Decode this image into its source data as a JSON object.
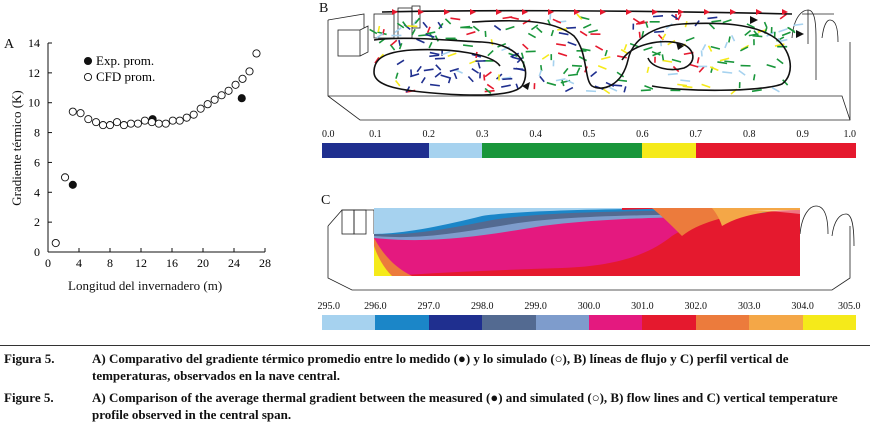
{
  "panel_a": {
    "letter": "A",
    "chart_data": {
      "type": "scatter",
      "xlabel": "Longitud del invernadero (m)",
      "ylabel": "Gradiente térmico (K)",
      "xlim": [
        0,
        28
      ],
      "ylim": [
        0,
        14
      ],
      "xticks": [
        "0",
        "4",
        "8",
        "12",
        "16",
        "20",
        "24",
        "28"
      ],
      "yticks": [
        "0",
        "2",
        "4",
        "6",
        "8",
        "10",
        "12",
        "14"
      ],
      "legend_position": "top-left",
      "series": [
        {
          "name": "Exp. prom.",
          "marker": "filled-circle",
          "x": [
            3.2,
            13.5,
            25.0
          ],
          "y": [
            4.5,
            8.9,
            10.3
          ]
        },
        {
          "name": "CFD prom.",
          "marker": "open-circle",
          "x": [
            1.0,
            2.2,
            3.2,
            4.2,
            5.2,
            6.2,
            7.1,
            8.0,
            8.9,
            9.8,
            10.7,
            11.6,
            12.5,
            13.4,
            14.3,
            15.2,
            16.1,
            17.0,
            17.9,
            18.8,
            19.7,
            20.6,
            21.5,
            22.4,
            23.3,
            24.2,
            25.1,
            26.0,
            26.9
          ],
          "y": [
            0.6,
            5.0,
            9.4,
            9.3,
            8.9,
            8.7,
            8.5,
            8.5,
            8.7,
            8.5,
            8.6,
            8.6,
            8.8,
            8.7,
            8.6,
            8.6,
            8.8,
            8.8,
            9.0,
            9.2,
            9.6,
            9.9,
            10.2,
            10.5,
            10.8,
            11.2,
            11.6,
            12.1,
            13.3
          ]
        }
      ]
    }
  },
  "panel_b": {
    "letter": "B",
    "colorbar": {
      "ticks": [
        "0.0",
        "0.1",
        "0.2",
        "0.3",
        "0.4",
        "0.5",
        "0.6",
        "0.7",
        "0.8",
        "0.9",
        "1.0"
      ],
      "segments": [
        {
          "from": 0.0,
          "to": 0.2,
          "color": "#1f2f8f"
        },
        {
          "from": 0.2,
          "to": 0.3,
          "color": "#a6d2ef"
        },
        {
          "from": 0.3,
          "to": 0.6,
          "color": "#19963b"
        },
        {
          "from": 0.6,
          "to": 0.7,
          "color": "#f5ea1a"
        },
        {
          "from": 0.7,
          "to": 1.0,
          "color": "#e5192e"
        }
      ]
    }
  },
  "panel_c": {
    "letter": "C",
    "colorbar": {
      "ticks": [
        "295.0",
        "296.0",
        "297.0",
        "298.0",
        "299.0",
        "300.0",
        "301.0",
        "302.0",
        "303.0",
        "304.0",
        "305.0"
      ],
      "colors": [
        "#a6d2ef",
        "#1b86c8",
        "#1f2f8f",
        "#536a91",
        "#7e9ccc",
        "#e4197f",
        "#e5192e",
        "#ec7b3c",
        "#f4a747",
        "#f5ea1a"
      ]
    }
  },
  "caption_es": {
    "label": "Figura 5.",
    "text": "A) Comparativo del gradiente térmico promedio entre lo medido (●) y lo simulado (○), B) líneas de flujo y C) perfil vertical de temperaturas, observados en la nave central."
  },
  "caption_en": {
    "label": "Figure 5.",
    "text": "A) Comparison of the average thermal gradient between the measured (●) and simulated (○), B) flow lines and C) vertical temperature profile observed in the central span."
  }
}
